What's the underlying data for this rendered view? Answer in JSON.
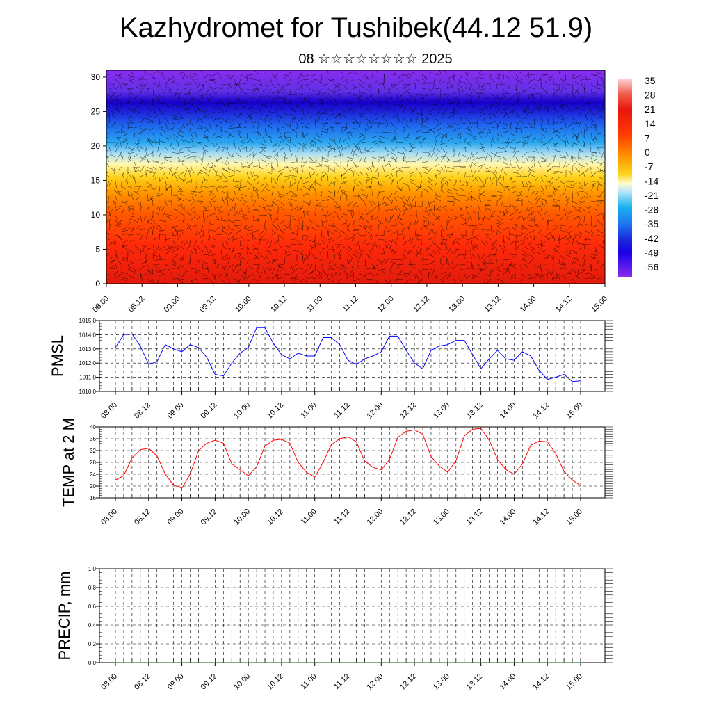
{
  "title": "Kazhydromet for Tushibek(44.12 51.9)",
  "subtitle": "08 ☆☆☆☆☆☆☆☆ 2025",
  "time_labels": [
    "08.00",
    "08.12",
    "09.00",
    "09.12",
    "10.00",
    "10.12",
    "11.00",
    "11.12",
    "12.00",
    "12.12",
    "13.00",
    "13.12",
    "14.00",
    "14.12",
    "15.00"
  ],
  "colors": {
    "pmsl_line": "#0000ff",
    "temp_line": "#ff0000",
    "precip_line": "#006400",
    "grid": "#000000"
  },
  "colorbar_labels": [
    "35",
    "28",
    "21",
    "14",
    "7",
    "0",
    "-7",
    "-14",
    "-21",
    "-28",
    "-35",
    "-42",
    "-49",
    "-56"
  ],
  "chart_data": [
    {
      "type": "heatmap",
      "name_hint": "cross-section",
      "y_ticks": [
        "0",
        "5",
        "10",
        "15",
        "20",
        "25",
        "30"
      ],
      "ylim": [
        0,
        31
      ],
      "x_range": [
        "08.00",
        "15.00"
      ],
      "color_range": [
        -60,
        38
      ],
      "overlay": "wind barbs"
    },
    {
      "type": "line",
      "ylabel": "PMSL",
      "ylim": [
        1010,
        1015
      ],
      "y_ticks": [
        "1010.0",
        "1011.0",
        "1012.0",
        "1013.0",
        "1014.0",
        "1015.0"
      ],
      "x_step_hours": 3,
      "values": [
        1013.1,
        1014.0,
        1014.05,
        1013.2,
        1011.9,
        1012.1,
        1013.3,
        1013.0,
        1012.8,
        1013.3,
        1013.1,
        1012.4,
        1011.2,
        1011.1,
        1012.0,
        1012.7,
        1013.1,
        1014.5,
        1014.5,
        1013.4,
        1012.6,
        1012.3,
        1012.7,
        1012.5,
        1012.5,
        1013.8,
        1013.8,
        1013.3,
        1012.2,
        1011.9,
        1012.3,
        1012.5,
        1012.8,
        1013.9,
        1013.9,
        1012.9,
        1012.0,
        1011.6,
        1012.9,
        1013.2,
        1013.3,
        1013.6,
        1013.6,
        1012.6,
        1011.6,
        1012.3,
        1012.9,
        1012.3,
        1012.2,
        1012.8,
        1012.5,
        1011.5,
        1010.85,
        1011.0,
        1011.2,
        1010.7,
        1010.75
      ]
    },
    {
      "type": "line",
      "ylabel": "TEMP at 2 M",
      "ylim": [
        16,
        40
      ],
      "y_ticks": [
        "16",
        "20",
        "24",
        "28",
        "32",
        "36",
        "40"
      ],
      "x_step_hours": 3,
      "values": [
        22.0,
        23.5,
        29.5,
        32.3,
        32.8,
        30.2,
        24.0,
        20.3,
        19.3,
        24.0,
        32.0,
        34.5,
        35.5,
        34.5,
        27.5,
        25.5,
        23.5,
        26.5,
        33.5,
        35.5,
        35.8,
        34.5,
        28.0,
        24.7,
        23.0,
        28.0,
        34.0,
        36.0,
        36.6,
        35.0,
        28.5,
        26.3,
        25.5,
        29.0,
        36.5,
        38.5,
        39.0,
        37.5,
        30.0,
        26.7,
        24.7,
        28.6,
        37.0,
        39.2,
        39.5,
        35.5,
        29.0,
        25.6,
        24.0,
        27.5,
        33.8,
        35.2,
        35.0,
        31.0,
        25.0,
        22.0,
        20.2
      ]
    },
    {
      "type": "line",
      "ylabel": "PRECIP, mm",
      "ylim": [
        0,
        1
      ],
      "y_ticks": [
        "0.0",
        "0.2",
        "0.4",
        "0.6",
        "0.8",
        "1.0"
      ],
      "x_step_hours": 3,
      "values": [
        0,
        0,
        0,
        0,
        0,
        0,
        0,
        0,
        0,
        0,
        0,
        0,
        0,
        0,
        0,
        0,
        0,
        0,
        0,
        0,
        0,
        0,
        0,
        0,
        0,
        0,
        0,
        0,
        0,
        0,
        0,
        0,
        0,
        0,
        0,
        0,
        0,
        0,
        0,
        0,
        0,
        0,
        0,
        0,
        0,
        0,
        0,
        0,
        0,
        0,
        0,
        0,
        0,
        0,
        0,
        0,
        0
      ]
    }
  ]
}
